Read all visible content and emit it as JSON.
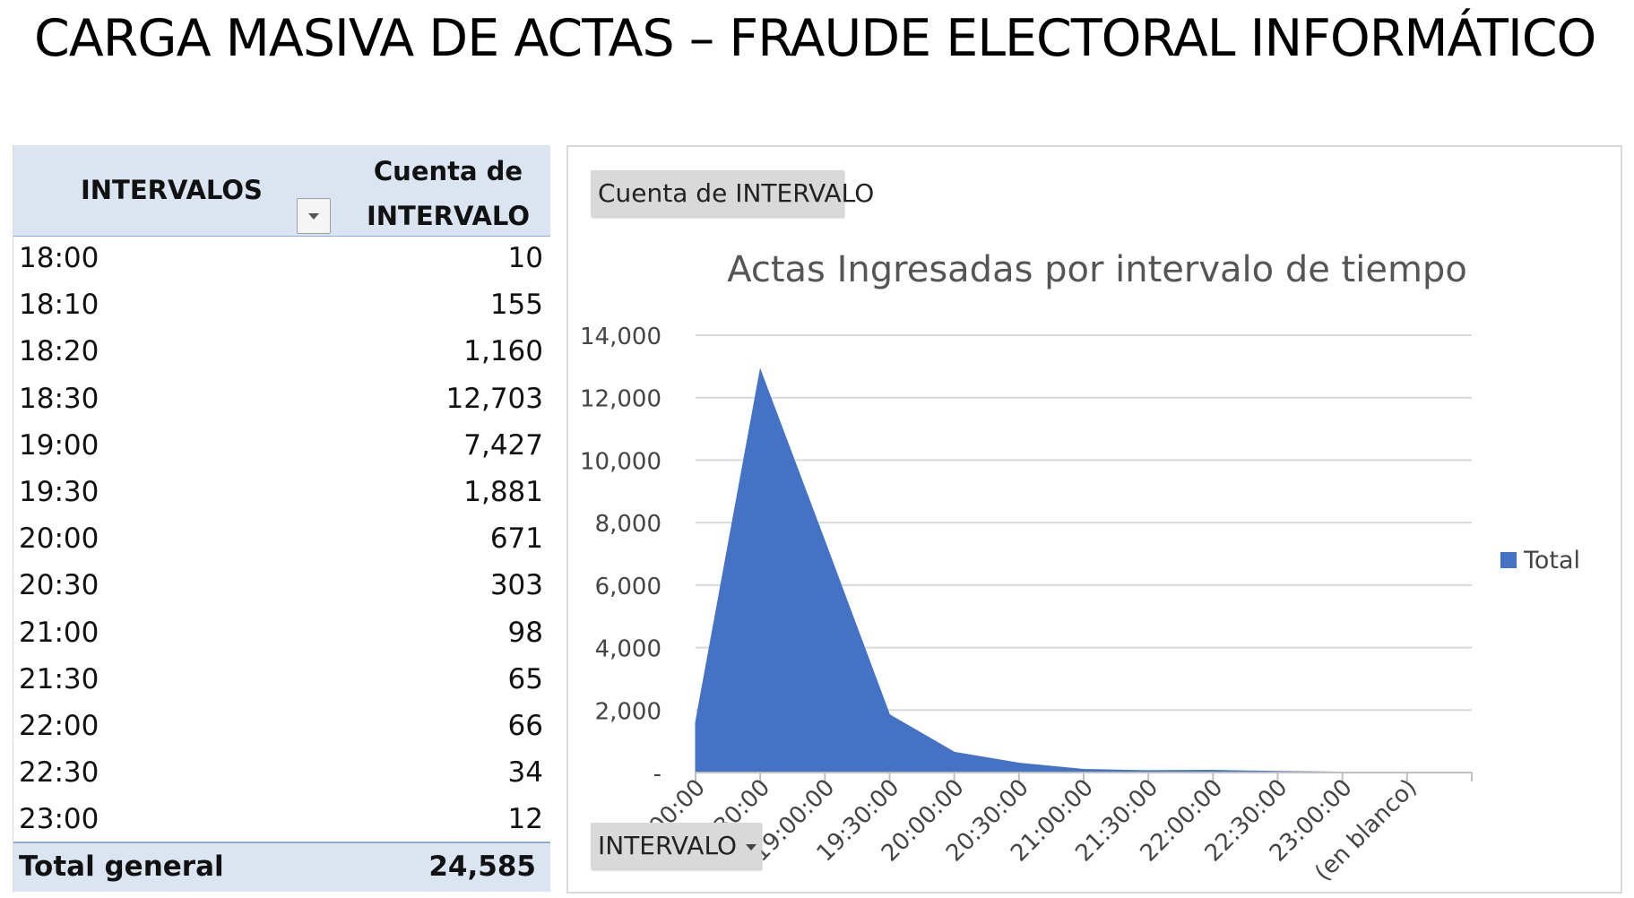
{
  "page_title": "CARGA MASIVA DE ACTAS – FRAUDE ELECTORAL INFORMÁTICO",
  "pivot_table": {
    "header_row_label": "INTERVALOS",
    "header_value_line1": "Cuenta de",
    "header_value_line2": "INTERVALO",
    "rows": [
      {
        "label": "18:00",
        "value": "10"
      },
      {
        "label": "18:10",
        "value": "155"
      },
      {
        "label": "18:20",
        "value": "1,160"
      },
      {
        "label": "18:30",
        "value": "12,703"
      },
      {
        "label": "19:00",
        "value": "7,427"
      },
      {
        "label": "19:30",
        "value": "1,881"
      },
      {
        "label": "20:00",
        "value": "671"
      },
      {
        "label": "20:30",
        "value": "303"
      },
      {
        "label": "21:00",
        "value": "98"
      },
      {
        "label": "21:30",
        "value": "65"
      },
      {
        "label": "22:00",
        "value": "66"
      },
      {
        "label": "22:30",
        "value": "34"
      },
      {
        "label": "23:00",
        "value": "12"
      }
    ],
    "total_label": "Total general",
    "total_value": "24,585",
    "colors": {
      "header_bg": "#dbe4f1",
      "header_border": "#8ea9d8"
    }
  },
  "chart_panel": {
    "value_field_button": "Cuenta de INTERVALO",
    "axis_field_button": "INTERVALO"
  },
  "chart_data": {
    "type": "area",
    "title": "Actas Ingresadas por intervalo de tiempo",
    "categories": [
      "18:00:00",
      "18:30:00",
      "19:00:00",
      "19:30:00",
      "20:00:00",
      "20:30:00",
      "21:00:00",
      "21:30:00",
      "22:00:00",
      "22:30:00",
      "23:00:00",
      "(en blanco)"
    ],
    "series": [
      {
        "name": "Total",
        "color": "#4472c4",
        "values": [
          1600,
          12900,
          7400,
          1850,
          650,
          300,
          100,
          60,
          70,
          35,
          15,
          0
        ]
      }
    ],
    "ylim": [
      0,
      14000
    ],
    "yticks": [
      0,
      2000,
      4000,
      6000,
      8000,
      10000,
      12000,
      14000
    ],
    "ytick_labels": [
      "-",
      "2,000",
      "4,000",
      "6,000",
      "8,000",
      "10,000",
      "12,000",
      "14,000"
    ],
    "xlabel": "",
    "ylabel": "",
    "grid": true,
    "legend_position": "right"
  }
}
